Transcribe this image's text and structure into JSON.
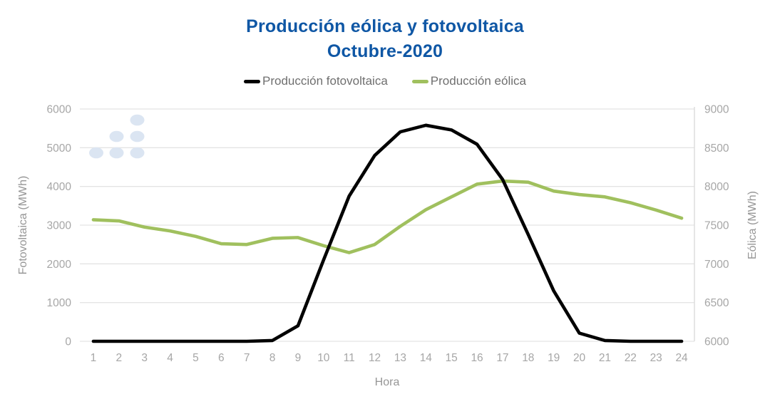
{
  "chart": {
    "title_line1": "Producción eólica y fotovoltaica",
    "title_line2": "Octubre-2020",
    "legend": [
      {
        "label": "Producción fotovoltaica",
        "color": "#000000"
      },
      {
        "label": "Producción eólica",
        "color": "#a0c05e"
      }
    ],
    "xlabel": "Hora",
    "ylabel_left": "Fotovoltaica (MWh)",
    "ylabel_right": "Eólica (MWh)"
  },
  "chart_data": {
    "type": "line",
    "title": "Producción eólica y fotovoltaica Octubre-2020",
    "x": [
      1,
      2,
      3,
      4,
      5,
      6,
      7,
      8,
      9,
      10,
      11,
      12,
      13,
      14,
      15,
      16,
      17,
      18,
      19,
      20,
      21,
      22,
      23,
      24
    ],
    "series": [
      {
        "name": "Producción fotovoltaica",
        "axis": "left",
        "color": "#000000",
        "values": [
          0,
          0,
          0,
          0,
          0,
          0,
          0,
          20,
          400,
          2100,
          3750,
          4800,
          5410,
          5580,
          5460,
          5090,
          4180,
          2760,
          1300,
          210,
          20,
          0,
          0,
          0
        ]
      },
      {
        "name": "Producción eólica",
        "axis": "right",
        "color": "#a0c05e",
        "values": [
          7570,
          7555,
          7475,
          7425,
          7355,
          7260,
          7250,
          7330,
          7340,
          7235,
          7145,
          7250,
          7485,
          7700,
          7865,
          8030,
          8070,
          8055,
          7940,
          7895,
          7865,
          7790,
          7695,
          7590
        ]
      }
    ],
    "axes": {
      "x": {
        "label": "Hora"
      },
      "left": {
        "label": "Fotovoltaica (MWh)",
        "min": 0,
        "max": 6000,
        "ticks": [
          0,
          1000,
          2000,
          3000,
          4000,
          5000,
          6000
        ]
      },
      "right": {
        "label": "Eólica (MWh)",
        "min": 6000,
        "max": 9000,
        "ticks": [
          6000,
          6500,
          7000,
          7500,
          8000,
          8500,
          9000
        ]
      }
    },
    "grid": "horizontal",
    "legend_position": "top"
  },
  "colors": {
    "title": "#0f57a5",
    "grid": "#e4e4e4",
    "axis_border": "#d9d9d9",
    "tick_text": "#a6a6a6",
    "axis_title_text": "#969696",
    "legend_text": "#6f6f6f",
    "logo_dot": "#dbe5f2"
  },
  "logo": {
    "name": "dots-logo"
  }
}
